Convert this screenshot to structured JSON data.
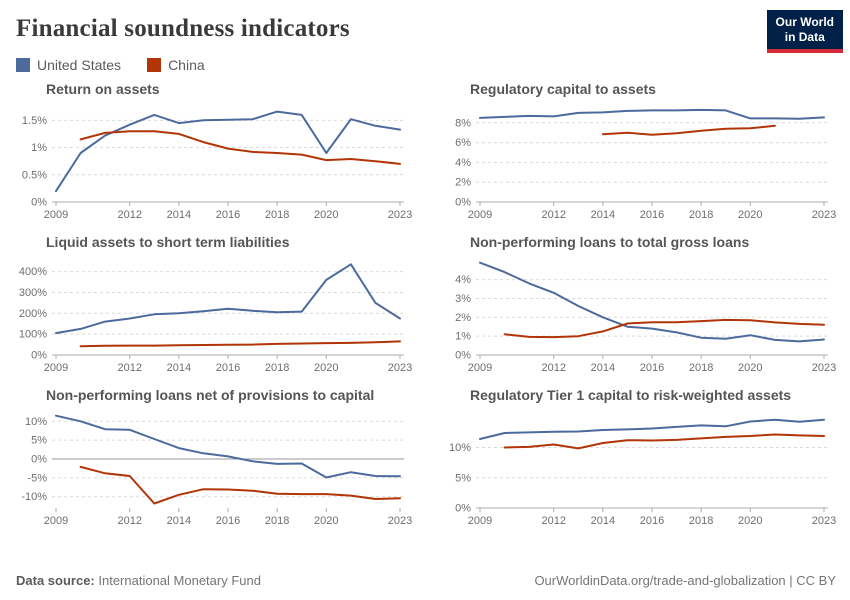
{
  "header": {
    "title": "Financial soundness indicators",
    "logo_line1": "Our World",
    "logo_line2": "in Data"
  },
  "colors": {
    "united_states": "#4C6A9C",
    "china": "#B13507"
  },
  "legend": [
    {
      "label": "United States",
      "color": "#4C6A9C"
    },
    {
      "label": "China",
      "color": "#B13507"
    }
  ],
  "footer": {
    "source_prefix": "Data source:",
    "source": " International Monetary Fund",
    "right": "OurWorldinData.org/trade-and-globalization | CC BY"
  },
  "chart_data": [
    {
      "type": "line",
      "title": "Return on assets",
      "xlim": [
        2009,
        2023
      ],
      "xticks": [
        2009,
        2012,
        2014,
        2016,
        2018,
        2020,
        2023
      ],
      "ylim": [
        0,
        1.8
      ],
      "yticks": [
        {
          "v": 0,
          "label": "0%"
        },
        {
          "v": 0.5,
          "label": "0.5%"
        },
        {
          "v": 1,
          "label": "1%"
        },
        {
          "v": 1.5,
          "label": "1.5%"
        }
      ],
      "grid": true,
      "legend_position": "top-of-page",
      "series": [
        {
          "name": "United States",
          "color": "#4C6A9C",
          "start_year": 2009,
          "values": [
            0.2,
            0.9,
            1.22,
            1.42,
            1.6,
            1.45,
            1.5,
            1.51,
            1.52,
            1.66,
            1.6,
            0.9,
            1.52,
            1.4,
            1.33
          ]
        },
        {
          "name": "China",
          "color": "#B13507",
          "start_year": 2010,
          "values": [
            1.15,
            1.27,
            1.3,
            1.3,
            1.25,
            1.1,
            0.98,
            0.92,
            0.9,
            0.87,
            0.77,
            0.79,
            0.75,
            0.7
          ]
        }
      ]
    },
    {
      "type": "line",
      "title": "Regulatory capital to assets",
      "xlim": [
        2009,
        2023
      ],
      "xticks": [
        2009,
        2012,
        2014,
        2016,
        2018,
        2020,
        2023
      ],
      "ylim": [
        0,
        9.9
      ],
      "yticks": [
        {
          "v": 0,
          "label": "0%"
        },
        {
          "v": 2,
          "label": "2%"
        },
        {
          "v": 4,
          "label": "4%"
        },
        {
          "v": 6,
          "label": "6%"
        },
        {
          "v": 8,
          "label": "8%"
        }
      ],
      "grid": true,
      "series": [
        {
          "name": "United States",
          "color": "#4C6A9C",
          "start_year": 2009,
          "values": [
            8.5,
            8.6,
            8.7,
            8.65,
            9.0,
            9.05,
            9.2,
            9.25,
            9.25,
            9.3,
            9.25,
            8.45,
            8.45,
            8.4,
            8.55
          ]
        },
        {
          "name": "China",
          "color": "#B13507",
          "start_year": 2014,
          "values": [
            6.85,
            7.0,
            6.8,
            6.95,
            7.2,
            7.4,
            7.45,
            7.7
          ]
        }
      ]
    },
    {
      "type": "line",
      "title": "Liquid assets to short term liabilities",
      "xlim": [
        2009,
        2023
      ],
      "xticks": [
        2009,
        2012,
        2014,
        2016,
        2018,
        2020,
        2023
      ],
      "ylim": [
        0,
        470
      ],
      "yticks": [
        {
          "v": 0,
          "label": "0%"
        },
        {
          "v": 100,
          "label": "100%"
        },
        {
          "v": 200,
          "label": "200%"
        },
        {
          "v": 300,
          "label": "300%"
        },
        {
          "v": 400,
          "label": "400%"
        }
      ],
      "grid": true,
      "series": [
        {
          "name": "United States",
          "color": "#4C6A9C",
          "start_year": 2009,
          "values": [
            105,
            125,
            160,
            175,
            195,
            200,
            210,
            222,
            212,
            205,
            208,
            360,
            435,
            250,
            175
          ]
        },
        {
          "name": "China",
          "color": "#B13507",
          "start_year": 2010,
          "values": [
            42,
            44,
            45,
            45,
            47,
            48,
            49,
            50,
            53,
            55,
            57,
            58,
            61,
            65
          ]
        }
      ]
    },
    {
      "type": "line",
      "title": "Non-performing loans to total gross loans",
      "xlim": [
        2009,
        2023
      ],
      "xticks": [
        2009,
        2012,
        2014,
        2016,
        2018,
        2020,
        2023
      ],
      "ylim": [
        0,
        5.2
      ],
      "yticks": [
        {
          "v": 0,
          "label": "0%"
        },
        {
          "v": 1,
          "label": "1%"
        },
        {
          "v": 2,
          "label": "2%"
        },
        {
          "v": 3,
          "label": "3%"
        },
        {
          "v": 4,
          "label": "4%"
        }
      ],
      "grid": true,
      "series": [
        {
          "name": "United States",
          "color": "#4C6A9C",
          "start_year": 2009,
          "values": [
            4.9,
            4.4,
            3.8,
            3.3,
            2.6,
            2.0,
            1.5,
            1.4,
            1.2,
            0.92,
            0.86,
            1.05,
            0.8,
            0.72,
            0.82
          ]
        },
        {
          "name": "China",
          "color": "#B13507",
          "start_year": 2010,
          "values": [
            1.1,
            0.96,
            0.95,
            1.0,
            1.25,
            1.67,
            1.74,
            1.74,
            1.8,
            1.86,
            1.84,
            1.73,
            1.65,
            1.6
          ]
        }
      ]
    },
    {
      "type": "line",
      "title": "Non-performing loans net of provisions to capital",
      "xlim": [
        2009,
        2023
      ],
      "xticks": [
        2009,
        2012,
        2014,
        2016,
        2018,
        2020,
        2023
      ],
      "ylim": [
        -13,
        13
      ],
      "yticks": [
        {
          "v": -10,
          "label": "-10%"
        },
        {
          "v": -5,
          "label": "-5%"
        },
        {
          "v": 0,
          "label": "0%"
        },
        {
          "v": 5,
          "label": "5%"
        },
        {
          "v": 10,
          "label": "10%"
        }
      ],
      "grid": true,
      "series": [
        {
          "name": "United States",
          "color": "#4C6A9C",
          "start_year": 2009,
          "values": [
            11.5,
            10.0,
            7.9,
            7.75,
            5.3,
            2.9,
            1.5,
            0.7,
            -0.6,
            -1.3,
            -1.2,
            -4.9,
            -3.5,
            -4.5,
            -4.6
          ]
        },
        {
          "name": "China",
          "color": "#B13507",
          "start_year": 2010,
          "values": [
            -2.1,
            -3.8,
            -4.5,
            -11.8,
            -9.5,
            -8.0,
            -8.1,
            -8.4,
            -9.2,
            -9.3,
            -9.3,
            -9.7,
            -10.6,
            -10.4
          ]
        }
      ]
    },
    {
      "type": "line",
      "title": "Regulatory Tier 1 capital to risk-weighted assets",
      "xlim": [
        2009,
        2023
      ],
      "xticks": [
        2009,
        2012,
        2014,
        2016,
        2018,
        2020,
        2023
      ],
      "ylim": [
        0,
        16.2
      ],
      "yticks": [
        {
          "v": 0,
          "label": "0%"
        },
        {
          "v": 5,
          "label": "5%"
        },
        {
          "v": 10,
          "label": "10%"
        }
      ],
      "grid": true,
      "series": [
        {
          "name": "United States",
          "color": "#4C6A9C",
          "start_year": 2009,
          "values": [
            11.4,
            12.4,
            12.5,
            12.6,
            12.65,
            12.9,
            13.0,
            13.15,
            13.4,
            13.65,
            13.5,
            14.3,
            14.6,
            14.25,
            14.6
          ]
        },
        {
          "name": "China",
          "color": "#B13507",
          "start_year": 2010,
          "values": [
            10.0,
            10.1,
            10.5,
            9.85,
            10.75,
            11.2,
            11.15,
            11.25,
            11.5,
            11.75,
            11.9,
            12.15,
            12.0,
            11.9
          ]
        }
      ]
    }
  ]
}
